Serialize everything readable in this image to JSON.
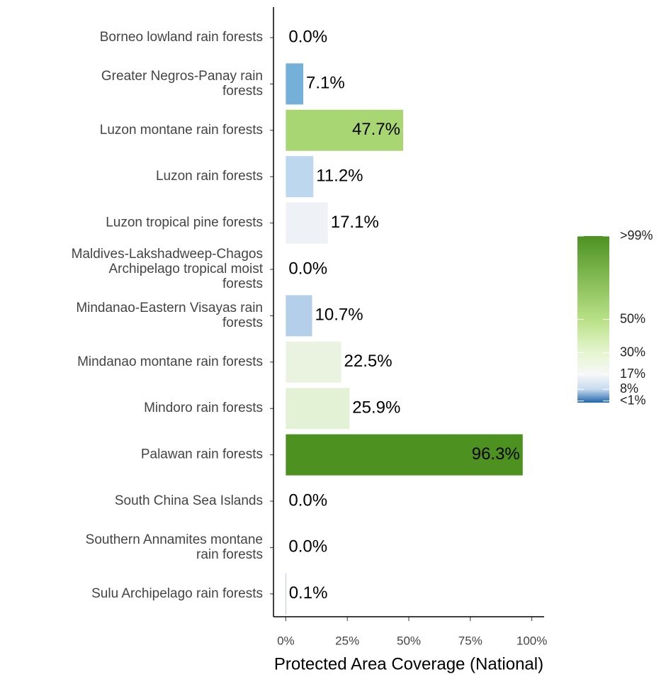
{
  "chart_data": {
    "type": "bar",
    "orientation": "horizontal",
    "xlabel": "Protected Area Coverage (National)",
    "categories": [
      "Borneo lowland rain forests",
      "Greater Negros-Panay rain\nforests",
      "Luzon montane rain forests",
      "Luzon rain forests",
      "Luzon tropical pine forests",
      "Maldives-Lakshadweep-Chagos\nArchipelago tropical moist\nforests",
      "Mindanao-Eastern Visayas rain\nforests",
      "Mindanao montane rain forests",
      "Mindoro rain forests",
      "Palawan rain forests",
      "South China Sea Islands",
      "Southern Annamites montane\nrain forests",
      "Sulu Archipelago rain forests"
    ],
    "values": [
      0,
      7.1,
      47.7,
      11.2,
      17.1,
      0,
      10.7,
      22.5,
      25.9,
      96.3,
      0,
      0,
      0.1
    ],
    "value_labels": [
      "0.0%",
      "7.1%",
      "47.7%",
      "11.2%",
      "17.1%",
      "0.0%",
      "10.7%",
      "22.5%",
      "25.9%",
      "96.3%",
      "0.0%",
      "0.0%",
      "0.1%"
    ],
    "colors": [
      "#2166ac",
      "#74b0d8",
      "#a8d672",
      "#bdd7ee",
      "#eef1f6",
      "#2166ac",
      "#b3cfea",
      "#eaf3e0",
      "#e3f1d4",
      "#4d9221",
      "#2166ac",
      "#2166ac",
      "#2a6aae"
    ],
    "xlim": [
      -5,
      105
    ],
    "xticks": [
      {
        "value": 0,
        "label": "0%"
      },
      {
        "value": 25,
        "label": "25%"
      },
      {
        "value": 50,
        "label": "50%"
      },
      {
        "value": 75,
        "label": "75%"
      },
      {
        "value": 100,
        "label": "100%"
      }
    ],
    "legend": {
      "lim": [
        0,
        100
      ],
      "ticks": [
        {
          "value": 100,
          "label": ">99%"
        },
        {
          "value": 50,
          "label": "50%"
        },
        {
          "value": 30,
          "label": "30%"
        },
        {
          "value": 17,
          "label": "17%"
        },
        {
          "value": 8,
          "label": "8%"
        },
        {
          "value": 1,
          "label": "<1%"
        }
      ],
      "stops": [
        0,
        8,
        17,
        30,
        50,
        100
      ],
      "colors": [
        "#2166ac",
        "#c6dbef",
        "#f7f7f7",
        "#e6f5d0",
        "#b8e186",
        "#4d9221"
      ]
    }
  }
}
